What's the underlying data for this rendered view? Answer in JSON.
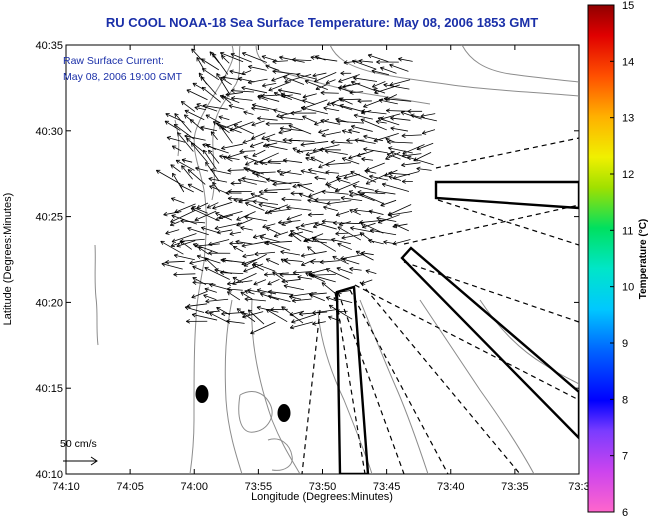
{
  "title": "RU COOL  NOAA-18  Sea Surface Temperature:  May 08, 2006 1853 GMT",
  "current_note": {
    "line1": "Raw Surface Current:",
    "line2": "May 08, 2006 19:00 GMT"
  },
  "axes": {
    "xlabel": "Longitude (Degrees:Minutes)",
    "ylabel": "Latitude (Degrees:Minutes)",
    "x_ticks": [
      "74:10",
      "74:05",
      "74:00",
      "73:55",
      "73:50",
      "73:45",
      "73:40",
      "73:35",
      "73:3"
    ],
    "y_ticks": [
      "40:35",
      "40:30",
      "40:25",
      "40:20",
      "40:15",
      "40:10"
    ]
  },
  "scale_label": "50 cm/s",
  "colorbar": {
    "label": "Temperature (°C)",
    "ticks": [
      "15",
      "14",
      "13",
      "12",
      "11",
      "10",
      "9",
      "8",
      "7",
      "6"
    ],
    "range": [
      6,
      15
    ]
  },
  "colors": {
    "title": "#1a2fa8",
    "land_contour": "#8c8c8c",
    "vectors": "#000000"
  },
  "icons": [
    "vector-scale-arrow-icon",
    "buoy-marker-icon"
  ]
}
